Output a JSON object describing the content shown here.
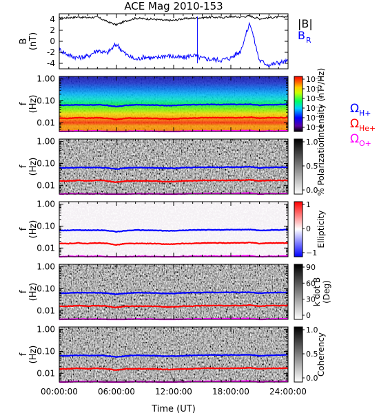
{
  "chart_data": {
    "title": "ACE Mag 2010-153",
    "xlabel": "Time (UT)",
    "x_ticks": [
      "00:00:00",
      "06:00:00",
      "12:00:00",
      "18:00:00",
      "24:00:00"
    ],
    "x_range_hours": [
      0,
      24
    ],
    "panels": [
      {
        "type": "line",
        "ylabel": "B",
        "yunit": "(nT)",
        "ylim": [
          -5,
          5
        ],
        "y_ticks": [
          "4",
          "2",
          "0",
          "-2",
          "-4"
        ],
        "series": [
          {
            "name": "|B|",
            "color": "#000000",
            "x": [
              0,
              1,
              2,
              3,
              4,
              5,
              6,
              7,
              8,
              9,
              10,
              11,
              12,
              13,
              14,
              15,
              16,
              17,
              18,
              19,
              20,
              21,
              22,
              23,
              24
            ],
            "y": [
              4.2,
              4.3,
              4.4,
              4.3,
              4.4,
              3.6,
              3.0,
              3.7,
              4.2,
              4.1,
              4.0,
              3.8,
              3.8,
              4.1,
              4.2,
              4.3,
              4.4,
              4.3,
              4.5,
              4.4,
              4.6,
              4.1,
              4.3,
              4.4,
              4.5
            ]
          },
          {
            "name": "B",
            "subscript": "R",
            "color": "#0000ff",
            "x": [
              0,
              1,
              2,
              3,
              4,
              5,
              6,
              7,
              8,
              9,
              10,
              11,
              12,
              13,
              14,
              15,
              16,
              17,
              18,
              19,
              20,
              21,
              22,
              23,
              24
            ],
            "y": [
              -1.5,
              -2.5,
              -3.0,
              -2.7,
              -1.6,
              -2.2,
              -0.5,
              -2.4,
              -3.3,
              -2.8,
              -3.1,
              -2.6,
              -2.8,
              -3.0,
              -2.5,
              -3.1,
              -3.3,
              -3.4,
              -3.0,
              -1.8,
              3.4,
              -3.5,
              -4.3,
              -3.9,
              -3.6
            ]
          }
        ]
      },
      {
        "type": "heatmap",
        "ylabel": "f",
        "yunit": "(Hz)",
        "colorbar_label": "Intensity (nT²/Hz)",
        "colorbar_ticks": [
          "10⁻¹",
          "10⁻²",
          "10⁻³",
          "10⁻⁴",
          "10⁻⁵",
          "10⁻⁶"
        ],
        "colorbar": "rainbow",
        "legend": [
          {
            "label": "Ω",
            "subscript": "H+",
            "color": "#0000ff"
          },
          {
            "label": "Ω",
            "subscript": "He+",
            "color": "#ff0000"
          },
          {
            "label": "Ω",
            "subscript": "O+",
            "color": "#ff00ff"
          }
        ]
      },
      {
        "type": "heatmap",
        "ylabel": "f",
        "yunit": "(Hz)",
        "colorbar_label": "% Polarization",
        "colorbar_ticks": [
          "1.0",
          "0.5",
          "0.0"
        ],
        "colorbar": "gray"
      },
      {
        "type": "heatmap",
        "ylabel": "f",
        "yunit": "(Hz)",
        "colorbar_label": "Ellipticity",
        "colorbar_ticks": [
          "1",
          "0",
          "−1"
        ],
        "colorbar": "bwr"
      },
      {
        "type": "heatmap",
        "ylabel": "f",
        "yunit": "(Hz)",
        "colorbar_label": "k dot B",
        "colorbar_label2": "(Deg)",
        "colorbar_ticks": [
          "90",
          "60",
          "30",
          "0"
        ],
        "colorbar": "gray"
      },
      {
        "type": "heatmap",
        "ylabel": "f",
        "yunit": "(Hz)",
        "colorbar_label": "Coherency",
        "colorbar_ticks": [
          "1.0",
          "0.5",
          "0.0"
        ],
        "colorbar": "gray"
      }
    ],
    "freq_ticks": [
      "1.00",
      "0.10",
      "0.01"
    ],
    "freq_range_hz": [
      0.004,
      1.3
    ],
    "gyrofrequency_lines": [
      {
        "name": "H+",
        "color": "#0000ff",
        "freq_hz": [
          0.062,
          0.064,
          0.066,
          0.065,
          0.066,
          0.063,
          0.055,
          0.062,
          0.066,
          0.065,
          0.064,
          0.061,
          0.061,
          0.064,
          0.066,
          0.067,
          0.068,
          0.067,
          0.069,
          0.068,
          0.07,
          0.063,
          0.066,
          0.067,
          0.069
        ]
      },
      {
        "name": "He+",
        "color": "#ff0000",
        "freq_hz": [
          0.016,
          0.016,
          0.017,
          0.016,
          0.017,
          0.016,
          0.014,
          0.016,
          0.016,
          0.016,
          0.016,
          0.015,
          0.015,
          0.016,
          0.016,
          0.017,
          0.017,
          0.017,
          0.017,
          0.017,
          0.018,
          0.016,
          0.017,
          0.017,
          0.017
        ]
      },
      {
        "name": "O+",
        "color": "#ff00ff",
        "freq_hz": [
          0.004,
          0.0041,
          0.0042,
          0.0041,
          0.0042,
          0.004,
          0.0035,
          0.004,
          0.0042,
          0.0041,
          0.0041,
          0.0039,
          0.0039,
          0.0041,
          0.0042,
          0.0042,
          0.0043,
          0.0042,
          0.0043,
          0.0043,
          0.0044,
          0.004,
          0.0042,
          0.0042,
          0.0043
        ]
      }
    ]
  }
}
